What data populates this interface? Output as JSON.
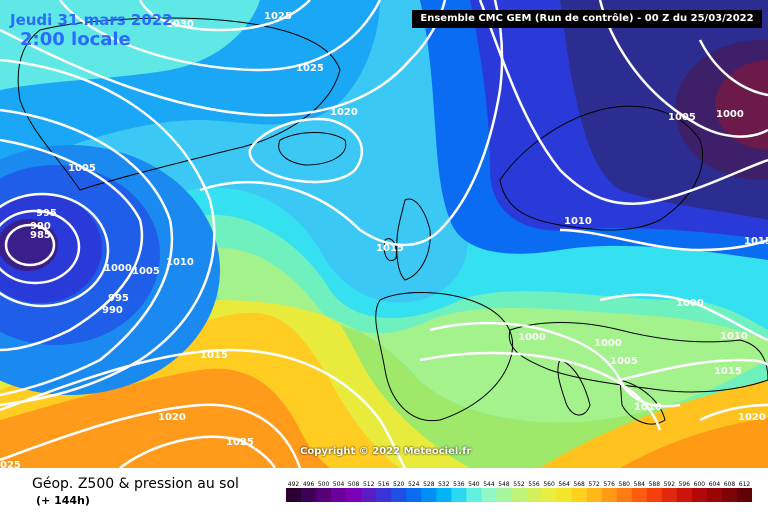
{
  "title": {
    "date": "Jeudi 31 mars 2022",
    "time": "2:00 locale"
  },
  "model_label": "Ensemble CMC GEM  (Run de contrôle)  -  00 Z du 25/03/2022",
  "copyright": "Copyright © 2022 Meteociel.fr",
  "bottom": {
    "title": "Géop. Z500 & pression au sol",
    "subtitle": "(+ 144h)"
  },
  "isobar_labels": [
    {
      "text": "1030"
    },
    {
      "text": "1025"
    },
    {
      "text": "1025"
    },
    {
      "text": "1020"
    },
    {
      "text": "1005"
    },
    {
      "text": "995"
    },
    {
      "text": "990"
    },
    {
      "text": "985"
    },
    {
      "text": "1000"
    },
    {
      "text": "1005"
    },
    {
      "text": "1010"
    },
    {
      "text": "995"
    },
    {
      "text": "990"
    },
    {
      "text": "1015"
    },
    {
      "text": "1015"
    },
    {
      "text": "1020"
    },
    {
      "text": "1025"
    },
    {
      "text": "025"
    },
    {
      "text": "1005"
    },
    {
      "text": "1000"
    },
    {
      "text": "1010"
    },
    {
      "text": "1015"
    },
    {
      "text": "1000"
    },
    {
      "text": "1000"
    },
    {
      "text": "1000"
    },
    {
      "text": "1005"
    },
    {
      "text": "1010"
    },
    {
      "text": "1010"
    },
    {
      "text": "1015"
    },
    {
      "text": "1020"
    }
  ],
  "legend": {
    "values": [
      "492",
      "496",
      "500",
      "504",
      "508",
      "512",
      "516",
      "520",
      "524",
      "528",
      "532",
      "536",
      "540",
      "544",
      "548",
      "552",
      "556",
      "560",
      "564",
      "568",
      "572",
      "576",
      "580",
      "584",
      "588",
      "592",
      "596",
      "600",
      "604",
      "608",
      "612"
    ],
    "colors": [
      "#2a0033",
      "#3d0055",
      "#550077",
      "#6a0099",
      "#7c00b5",
      "#5a1bc4",
      "#3a34d6",
      "#1f50e6",
      "#0a6cf2",
      "#0090f5",
      "#00b4f5",
      "#2ad8f0",
      "#5ff0e0",
      "#8ef7c4",
      "#a8f59c",
      "#bff27a",
      "#d3f05a",
      "#e7ee40",
      "#f5e52a",
      "#ffd21f",
      "#ffb81a",
      "#ff9a15",
      "#ff7c12",
      "#ff5c10",
      "#f5400e",
      "#e2280c",
      "#cc140a",
      "#b30808",
      "#990407",
      "#7d0306",
      "#600205"
    ]
  },
  "colors": {
    "title": "#2a6bff",
    "isobar": "#ffffff",
    "coast": "#000000"
  }
}
